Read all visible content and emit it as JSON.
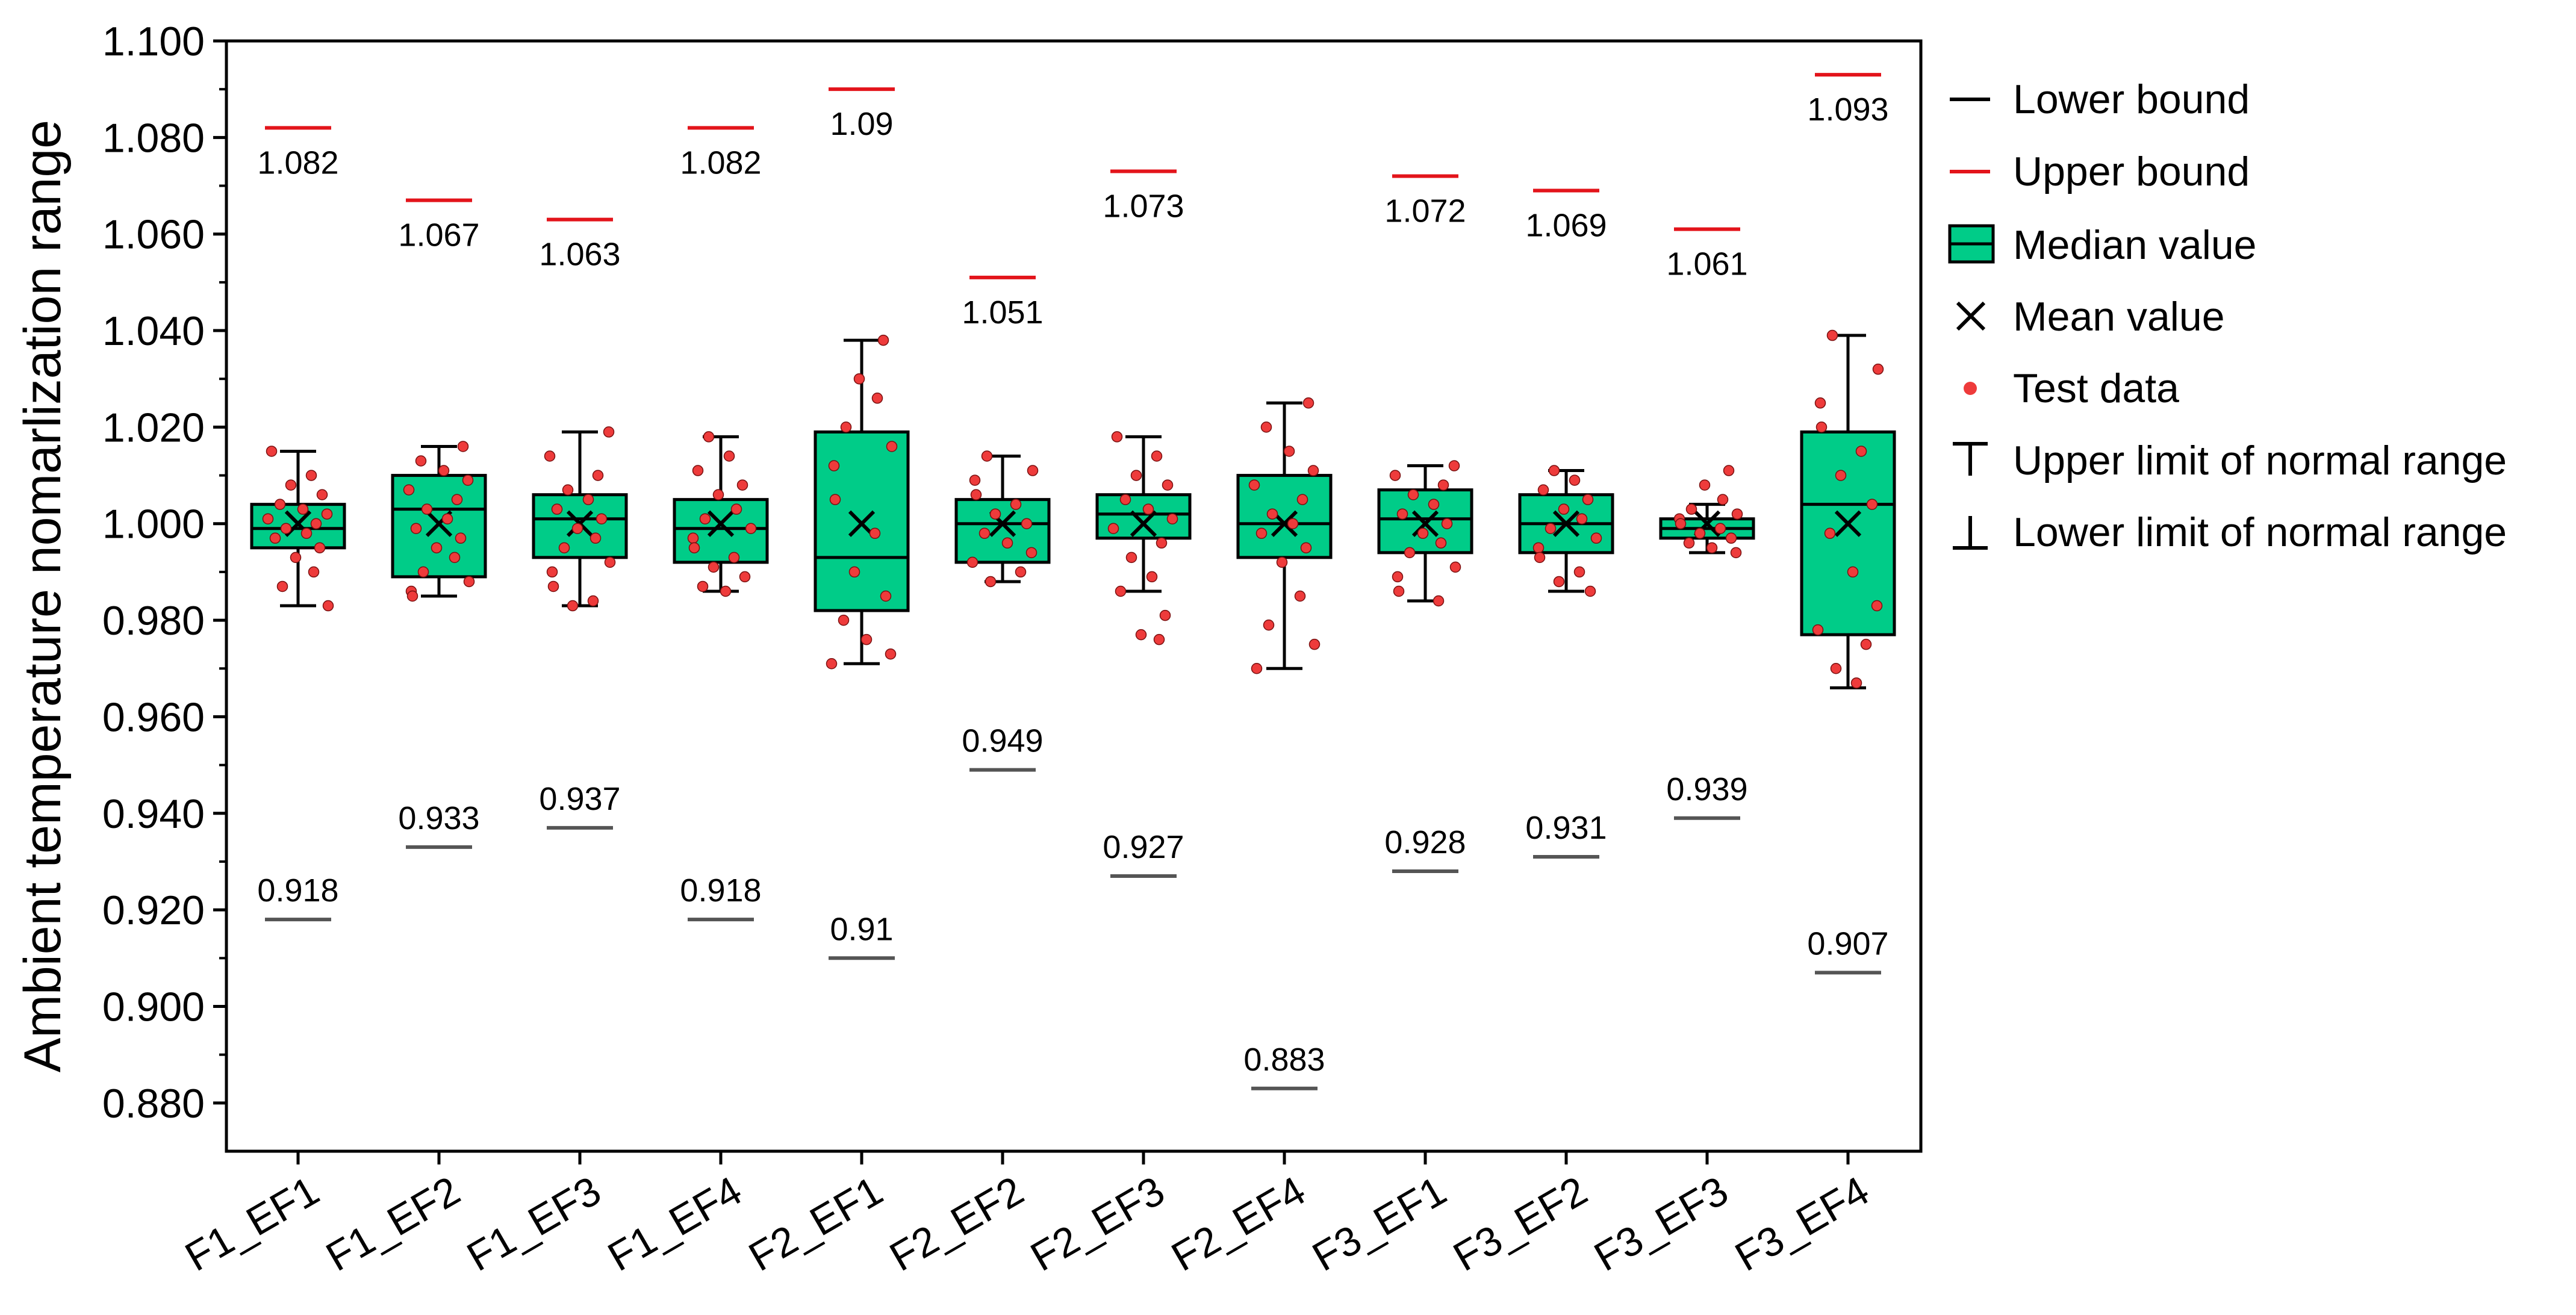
{
  "chart_data": {
    "type": "box",
    "ylabel": "Ambient temperature nomarlization range",
    "ylim": [
      0.87,
      1.1
    ],
    "yticks": [
      "0.880",
      "0.900",
      "0.920",
      "0.940",
      "0.960",
      "0.980",
      "1.000",
      "1.020",
      "1.040",
      "1.060",
      "1.080",
      "1.100"
    ],
    "categories": [
      "F1_EF1",
      "F1_EF2",
      "F1_EF3",
      "F1_EF4",
      "F2_EF1",
      "F2_EF2",
      "F2_EF3",
      "F2_EF4",
      "F3_EF1",
      "F3_EF2",
      "F3_EF3",
      "F3_EF4"
    ],
    "boxes": [
      {
        "whisker_low": 0.983,
        "q1": 0.995,
        "median": 0.999,
        "q3": 1.004,
        "whisker_high": 1.015,
        "mean": 1.0
      },
      {
        "whisker_low": 0.985,
        "q1": 0.989,
        "median": 1.003,
        "q3": 1.01,
        "whisker_high": 1.016,
        "mean": 1.0
      },
      {
        "whisker_low": 0.983,
        "q1": 0.993,
        "median": 1.001,
        "q3": 1.006,
        "whisker_high": 1.019,
        "mean": 1.0
      },
      {
        "whisker_low": 0.986,
        "q1": 0.992,
        "median": 0.999,
        "q3": 1.005,
        "whisker_high": 1.018,
        "mean": 1.0
      },
      {
        "whisker_low": 0.971,
        "q1": 0.982,
        "median": 0.993,
        "q3": 1.019,
        "whisker_high": 1.038,
        "mean": 1.0
      },
      {
        "whisker_low": 0.988,
        "q1": 0.992,
        "median": 1.0,
        "q3": 1.005,
        "whisker_high": 1.014,
        "mean": 1.0
      },
      {
        "whisker_low": 0.986,
        "q1": 0.997,
        "median": 1.002,
        "q3": 1.006,
        "whisker_high": 1.018,
        "mean": 1.0
      },
      {
        "whisker_low": 0.97,
        "q1": 0.993,
        "median": 1.0,
        "q3": 1.01,
        "whisker_high": 1.025,
        "mean": 1.0
      },
      {
        "whisker_low": 0.984,
        "q1": 0.994,
        "median": 1.001,
        "q3": 1.007,
        "whisker_high": 1.012,
        "mean": 1.0
      },
      {
        "whisker_low": 0.986,
        "q1": 0.994,
        "median": 1.0,
        "q3": 1.006,
        "whisker_high": 1.011,
        "mean": 1.0
      },
      {
        "whisker_low": 0.994,
        "q1": 0.997,
        "median": 0.999,
        "q3": 1.001,
        "whisker_high": 1.004,
        "mean": 1.0
      },
      {
        "whisker_low": 0.966,
        "q1": 0.977,
        "median": 1.004,
        "q3": 1.019,
        "whisker_high": 1.039,
        "mean": 1.0
      }
    ],
    "upper_bounds": [
      1.082,
      1.067,
      1.063,
      1.082,
      1.09,
      1.051,
      1.073,
      null,
      1.072,
      1.069,
      1.061,
      1.093
    ],
    "upper_labels": [
      "1.082",
      "1.067",
      "1.063",
      "1.082",
      "1.09",
      "1.051",
      "1.073",
      "",
      "1.072",
      "1.069",
      "1.061",
      "1.093"
    ],
    "lower_bounds": [
      0.918,
      0.933,
      0.937,
      0.918,
      0.91,
      0.949,
      0.927,
      0.883,
      0.928,
      0.931,
      0.939,
      0.907
    ],
    "lower_labels": [
      "0.918",
      "0.933",
      "0.937",
      "0.918",
      "0.91",
      "0.949",
      "0.927",
      "0.883",
      "0.928",
      "0.931",
      "0.939",
      "0.907"
    ],
    "test_data": [
      [
        1.015,
        1.01,
        1.008,
        1.006,
        1.004,
        1.003,
        1.002,
        1.001,
        1.0,
        0.999,
        0.998,
        0.997,
        0.995,
        0.993,
        0.99,
        0.987,
        0.983
      ],
      [
        1.016,
        1.013,
        1.011,
        1.009,
        1.007,
        1.005,
        1.003,
        1.001,
        0.999,
        0.997,
        0.995,
        0.993,
        0.99,
        0.988,
        0.986,
        0.985
      ],
      [
        1.019,
        1.014,
        1.01,
        1.007,
        1.005,
        1.003,
        1.001,
        0.999,
        0.997,
        0.995,
        0.992,
        0.99,
        0.987,
        0.984,
        0.983
      ],
      [
        1.018,
        1.014,
        1.011,
        1.008,
        1.006,
        1.003,
        1.001,
        0.999,
        0.997,
        0.995,
        0.993,
        0.991,
        0.989,
        0.987,
        0.986
      ],
      [
        1.038,
        1.03,
        1.026,
        1.02,
        1.016,
        1.012,
        1.005,
        0.998,
        0.99,
        0.985,
        0.98,
        0.976,
        0.973,
        0.971
      ],
      [
        1.014,
        1.011,
        1.009,
        1.006,
        1.004,
        1.002,
        1.0,
        0.998,
        0.996,
        0.994,
        0.992,
        0.99,
        0.988
      ],
      [
        1.018,
        1.014,
        1.01,
        1.008,
        1.005,
        1.003,
        1.001,
        0.999,
        0.996,
        0.993,
        0.989,
        0.986,
        0.981,
        0.977,
        0.976
      ],
      [
        1.025,
        1.02,
        1.015,
        1.011,
        1.008,
        1.005,
        1.002,
        1.0,
        0.998,
        0.995,
        0.992,
        0.985,
        0.979,
        0.975,
        0.97
      ],
      [
        1.012,
        1.01,
        1.008,
        1.006,
        1.004,
        1.002,
        1.0,
        0.998,
        0.996,
        0.994,
        0.991,
        0.989,
        0.986,
        0.984
      ],
      [
        1.011,
        1.009,
        1.007,
        1.005,
        1.003,
        1.001,
        0.999,
        0.997,
        0.995,
        0.993,
        0.99,
        0.988,
        0.986
      ],
      [
        1.011,
        1.008,
        1.005,
        1.003,
        1.002,
        1.001,
        1.0,
        0.999,
        0.998,
        0.997,
        0.996,
        0.995,
        0.994
      ],
      [
        1.039,
        1.032,
        1.025,
        1.02,
        1.015,
        1.01,
        1.004,
        0.998,
        0.99,
        0.983,
        0.978,
        0.975,
        0.97,
        0.967
      ]
    ],
    "legend": {
      "position": "right",
      "entries": [
        "Lower bound",
        "Upper bound",
        "Median value",
        "Mean value",
        "Test data",
        "Upper limit of normal range",
        "Lower limit of normal range"
      ]
    },
    "colors": {
      "box_fill": "#00cc88",
      "upper_bound": "#e3141b",
      "lower_bound": "#555555",
      "test_data": "#ee3b3b",
      "axis": "#000000"
    }
  }
}
